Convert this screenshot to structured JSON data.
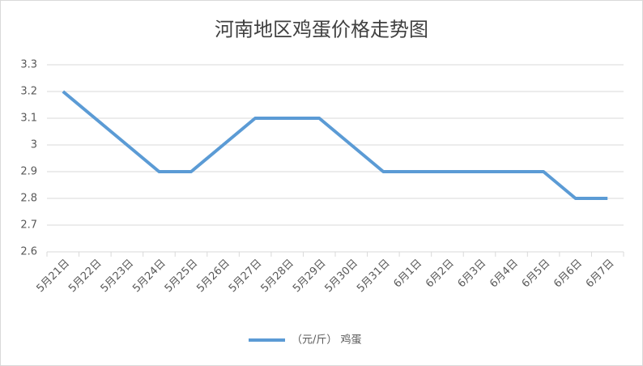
{
  "chart_data": {
    "type": "line",
    "title": "河南地区鸡蛋价格走势图",
    "categories": [
      "5月21日",
      "5月22日",
      "5月23日",
      "5月24日",
      "5月25日",
      "5月26日",
      "5月27日",
      "5月28日",
      "5月29日",
      "5月30日",
      "5月31日",
      "6月1日",
      "6月2日",
      "6月3日",
      "6月4日",
      "6月5日",
      "6月6日",
      "6月7日"
    ],
    "series": [
      {
        "name": "（元/斤） 鸡蛋",
        "color": "#5b9bd5",
        "values": [
          3.2,
          3.1,
          3.0,
          2.9,
          2.9,
          3.0,
          3.1,
          3.1,
          3.1,
          3.0,
          2.9,
          2.9,
          2.9,
          2.9,
          2.9,
          2.9,
          2.8,
          2.8
        ]
      }
    ],
    "ylim": [
      2.6,
      3.3
    ],
    "yticks": [
      2.6,
      2.7,
      2.8,
      2.9,
      3,
      3.1,
      3.2,
      3.3
    ],
    "grid": true,
    "legend": "bottom"
  }
}
